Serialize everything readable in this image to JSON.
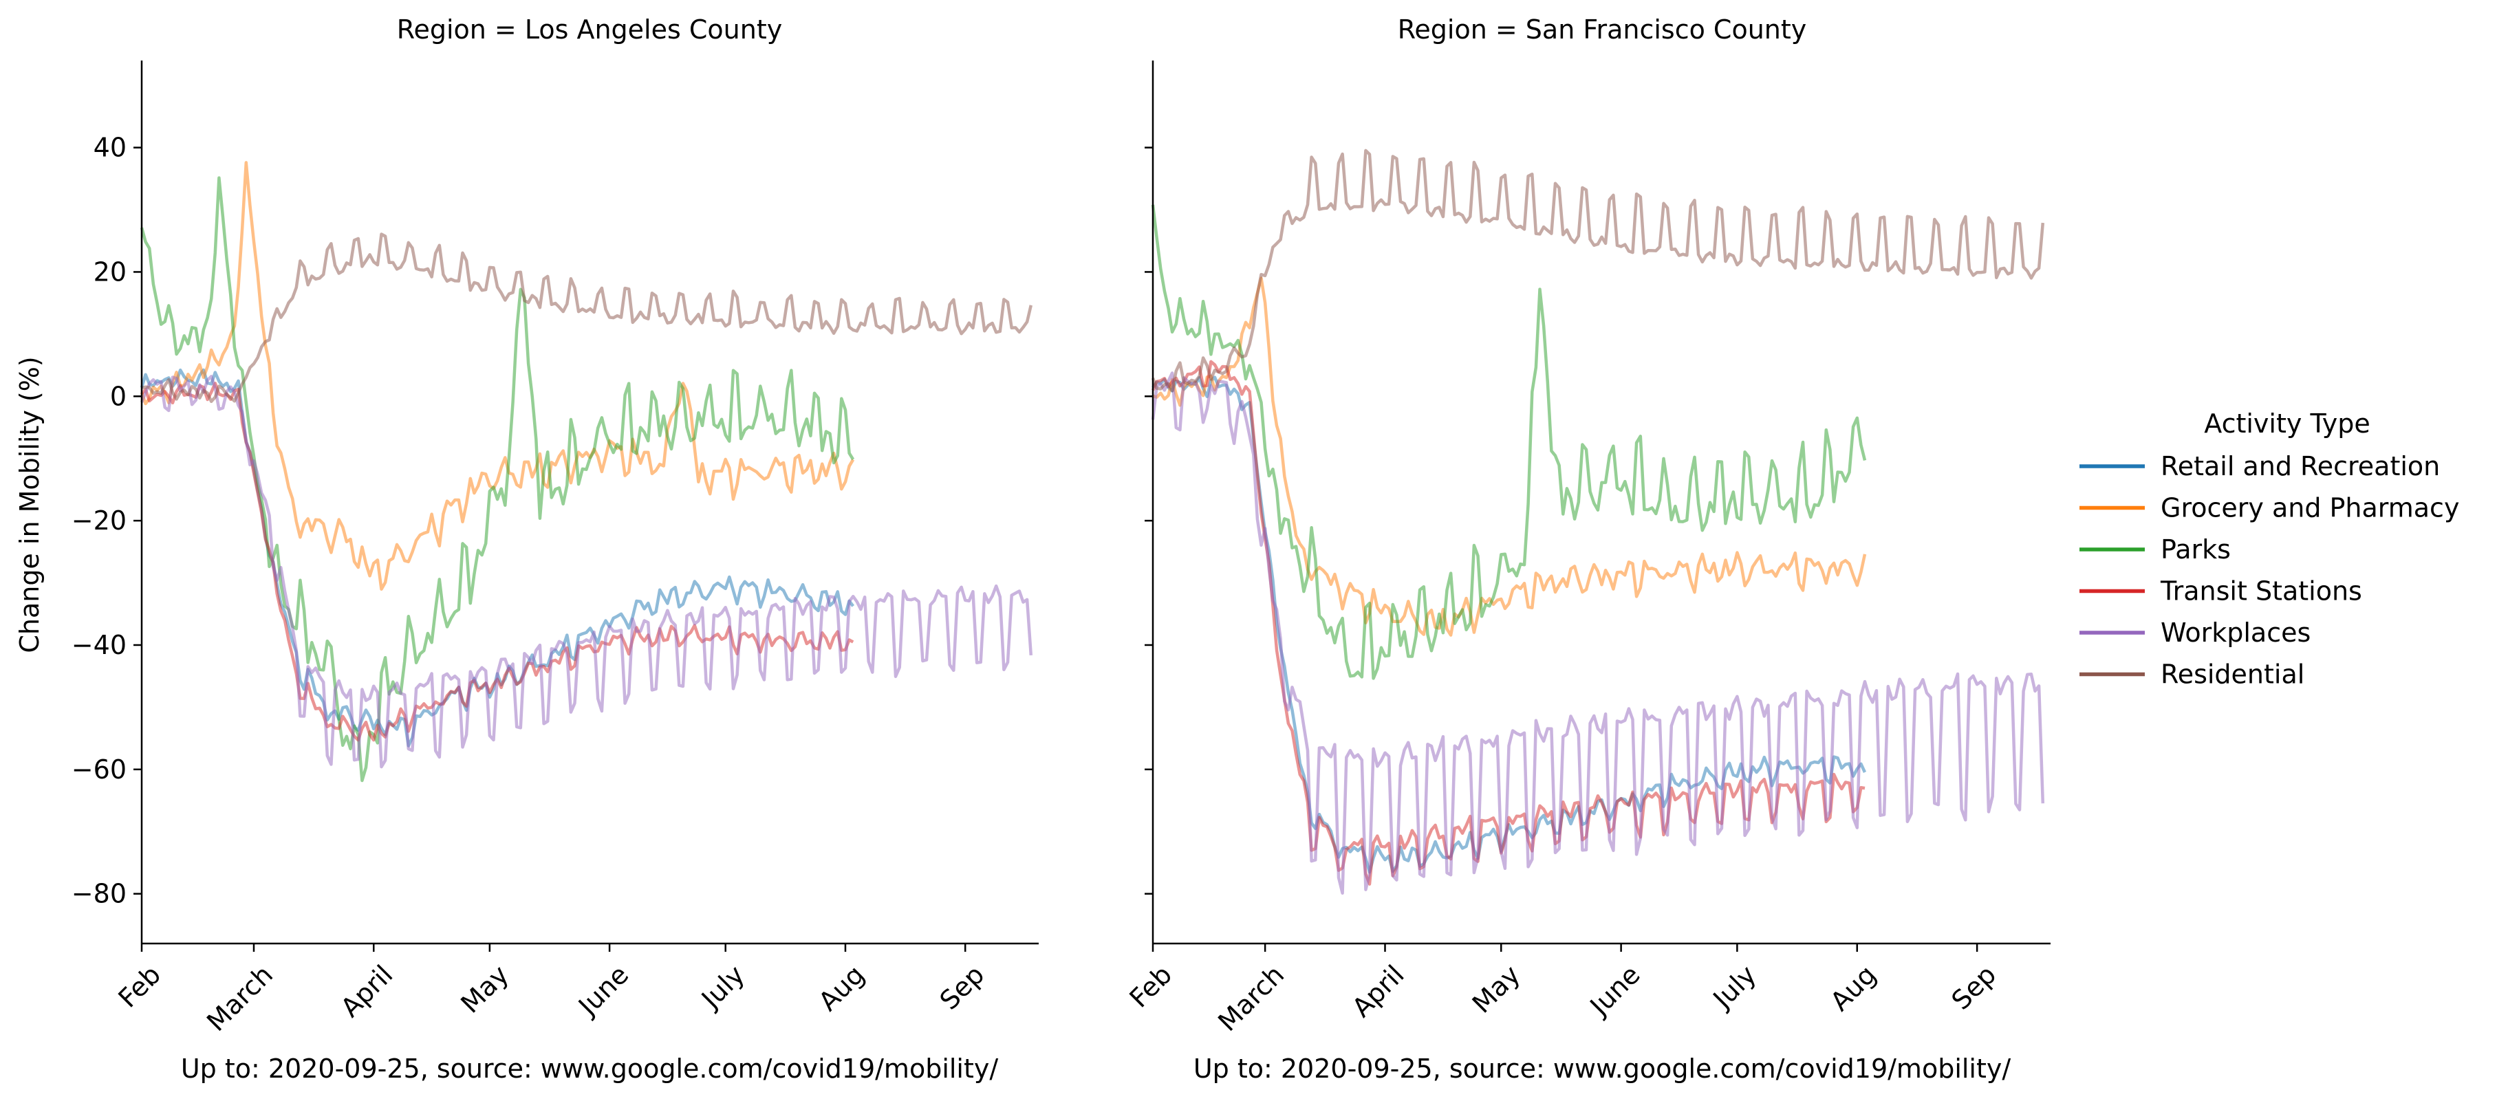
{
  "chart_data": [
    {
      "type": "line",
      "title": "Region = Los Angeles County",
      "ylabel": "Change in Mobility (%)",
      "xlabel": "Up to: 2020-09-25, source: www.google.com/covid19/mobility/",
      "x_range": [
        "2020-02-01",
        "2020-09-20"
      ],
      "ylim": [
        -88,
        54
      ],
      "x_ticks": [
        {
          "date": "2020-02-01",
          "label": "Feb"
        },
        {
          "date": "2020-03-01",
          "label": "March"
        },
        {
          "date": "2020-04-01",
          "label": "April"
        },
        {
          "date": "2020-05-01",
          "label": "May"
        },
        {
          "date": "2020-06-01",
          "label": "June"
        },
        {
          "date": "2020-07-01",
          "label": "July"
        },
        {
          "date": "2020-08-01",
          "label": "Aug"
        },
        {
          "date": "2020-09-01",
          "label": "Sep"
        }
      ],
      "y_ticks": [
        40,
        20,
        0,
        -20,
        -40,
        -60,
        -80
      ],
      "y_tick_labels": [
        "40",
        "20",
        "0",
        "−20",
        "−40",
        "−60",
        "−80"
      ],
      "grid": false,
      "series": [
        {
          "name": "Retail and Recreation",
          "color": "#1f77b4",
          "weekly_amplitude": 2,
          "noise": 1.5,
          "end": "2020-08-03",
          "points": [
            [
              "2020-02-01",
              2
            ],
            [
              "2020-02-10",
              3
            ],
            [
              "2020-02-20",
              3
            ],
            [
              "2020-02-26",
              1
            ],
            [
              "2020-03-05",
              -25
            ],
            [
              "2020-03-12",
              -42
            ],
            [
              "2020-03-20",
              -50
            ],
            [
              "2020-04-01",
              -52
            ],
            [
              "2020-04-10",
              -53
            ],
            [
              "2020-04-20",
              -48
            ],
            [
              "2020-05-01",
              -46
            ],
            [
              "2020-05-15",
              -42
            ],
            [
              "2020-06-01",
              -36
            ],
            [
              "2020-06-15",
              -32
            ],
            [
              "2020-07-01",
              -30
            ],
            [
              "2020-07-15",
              -31
            ],
            [
              "2020-08-03",
              -33
            ]
          ]
        },
        {
          "name": "Grocery and Pharmacy",
          "color": "#ff7f0e",
          "weekly_amplitude": 3,
          "noise": 2,
          "end": "2020-08-03",
          "points": [
            [
              "2020-02-01",
              0
            ],
            [
              "2020-02-10",
              2
            ],
            [
              "2020-02-20",
              6
            ],
            [
              "2020-02-25",
              10
            ],
            [
              "2020-02-28",
              37
            ],
            [
              "2020-03-04",
              8
            ],
            [
              "2020-03-08",
              -10
            ],
            [
              "2020-03-12",
              -19
            ],
            [
              "2020-03-25",
              -22
            ],
            [
              "2020-04-01",
              -28
            ],
            [
              "2020-04-10",
              -24
            ],
            [
              "2020-04-20",
              -18
            ],
            [
              "2020-05-01",
              -12
            ],
            [
              "2020-05-15",
              -11
            ],
            [
              "2020-06-01",
              -8
            ],
            [
              "2020-06-15",
              -10
            ],
            [
              "2020-06-20",
              5
            ],
            [
              "2020-06-24",
              -12
            ],
            [
              "2020-07-15",
              -11
            ],
            [
              "2020-08-03",
              -11
            ]
          ]
        },
        {
          "name": "Parks",
          "color": "#2ca02c",
          "weekly_amplitude": 7,
          "noise": 3,
          "end": "2020-08-03",
          "points": [
            [
              "2020-02-01",
              28
            ],
            [
              "2020-02-06",
              12
            ],
            [
              "2020-02-12",
              8
            ],
            [
              "2020-02-18",
              10
            ],
            [
              "2020-02-21",
              32
            ],
            [
              "2020-02-26",
              5
            ],
            [
              "2020-03-05",
              -25
            ],
            [
              "2020-03-12",
              -38
            ],
            [
              "2020-03-20",
              -45
            ],
            [
              "2020-03-28",
              -62
            ],
            [
              "2020-04-05",
              -48
            ],
            [
              "2020-04-15",
              -40
            ],
            [
              "2020-04-25",
              -32
            ],
            [
              "2020-05-05",
              -15
            ],
            [
              "2020-05-10",
              16
            ],
            [
              "2020-05-14",
              -18
            ],
            [
              "2020-05-25",
              -12
            ],
            [
              "2020-06-01",
              -8
            ],
            [
              "2020-06-15",
              -6
            ],
            [
              "2020-07-01",
              -5
            ],
            [
              "2020-07-20",
              -5
            ],
            [
              "2020-08-03",
              -10
            ]
          ]
        },
        {
          "name": "Transit Stations",
          "color": "#d62728",
          "weekly_amplitude": 1.5,
          "noise": 1.5,
          "end": "2020-08-03",
          "points": [
            [
              "2020-02-01",
              0
            ],
            [
              "2020-02-20",
              1
            ],
            [
              "2020-02-26",
              0
            ],
            [
              "2020-03-05",
              -25
            ],
            [
              "2020-03-12",
              -45
            ],
            [
              "2020-03-20",
              -52
            ],
            [
              "2020-04-01",
              -54
            ],
            [
              "2020-04-10",
              -51
            ],
            [
              "2020-04-20",
              -48
            ],
            [
              "2020-05-01",
              -46
            ],
            [
              "2020-05-15",
              -43
            ],
            [
              "2020-06-01",
              -39
            ],
            [
              "2020-06-20",
              -38
            ],
            [
              "2020-07-15",
              -39
            ],
            [
              "2020-08-03",
              -39
            ]
          ]
        },
        {
          "name": "Workplaces",
          "color": "#9467bd",
          "weekly_amplitude": 11,
          "noise": 1.5,
          "end": "2020-09-18",
          "points": [
            [
              "2020-02-01",
              2
            ],
            [
              "2020-02-20",
              2
            ],
            [
              "2020-02-26",
              0
            ],
            [
              "2020-03-05",
              -20
            ],
            [
              "2020-03-12",
              -40
            ],
            [
              "2020-03-20",
              -47
            ],
            [
              "2020-04-01",
              -48
            ],
            [
              "2020-04-15",
              -46
            ],
            [
              "2020-05-01",
              -44
            ],
            [
              "2020-05-15",
              -41
            ],
            [
              "2020-06-01",
              -38
            ],
            [
              "2020-06-15",
              -36
            ],
            [
              "2020-07-01",
              -35
            ],
            [
              "2020-08-01",
              -33
            ],
            [
              "2020-09-01",
              -32
            ],
            [
              "2020-09-18",
              -32
            ]
          ]
        },
        {
          "name": "Residential",
          "color": "#8c564b",
          "weekly_amplitude": 4,
          "noise": 1,
          "end": "2020-09-18",
          "points": [
            [
              "2020-02-01",
              1
            ],
            [
              "2020-02-20",
              0
            ],
            [
              "2020-02-26",
              0
            ],
            [
              "2020-03-05",
              10
            ],
            [
              "2020-03-12",
              17
            ],
            [
              "2020-03-20",
              20
            ],
            [
              "2020-04-01",
              22
            ],
            [
              "2020-04-15",
              20
            ],
            [
              "2020-05-01",
              17
            ],
            [
              "2020-05-15",
              15
            ],
            [
              "2020-06-01",
              13
            ],
            [
              "2020-07-01",
              12
            ],
            [
              "2020-08-01",
              11
            ],
            [
              "2020-09-01",
              11
            ],
            [
              "2020-09-18",
              11
            ]
          ]
        }
      ]
    },
    {
      "type": "line",
      "title": "Region = San Francisco County",
      "xlabel": "Up to: 2020-09-25, source: www.google.com/covid19/mobility/",
      "x_range": [
        "2020-02-01",
        "2020-09-20"
      ],
      "ylim": [
        -88,
        54
      ],
      "x_ticks": [
        {
          "date": "2020-02-01",
          "label": "Feb"
        },
        {
          "date": "2020-03-01",
          "label": "March"
        },
        {
          "date": "2020-04-01",
          "label": "April"
        },
        {
          "date": "2020-05-01",
          "label": "May"
        },
        {
          "date": "2020-06-01",
          "label": "June"
        },
        {
          "date": "2020-07-01",
          "label": "July"
        },
        {
          "date": "2020-08-01",
          "label": "Aug"
        },
        {
          "date": "2020-09-01",
          "label": "Sep"
        }
      ],
      "y_ticks": [
        40,
        20,
        0,
        -20,
        -40,
        -60,
        -80
      ],
      "grid": false,
      "series": [
        {
          "name": "Retail and Recreation",
          "color": "#1f77b4",
          "weekly_amplitude": 2,
          "noise": 1.5,
          "end": "2020-08-03",
          "points": [
            [
              "2020-02-01",
              2
            ],
            [
              "2020-02-20",
              2
            ],
            [
              "2020-02-26",
              -2
            ],
            [
              "2020-03-05",
              -40
            ],
            [
              "2020-03-12",
              -65
            ],
            [
              "2020-03-20",
              -72
            ],
            [
              "2020-04-01",
              -74
            ],
            [
              "2020-04-15",
              -73
            ],
            [
              "2020-05-01",
              -70
            ],
            [
              "2020-05-15",
              -68
            ],
            [
              "2020-06-01",
              -65
            ],
            [
              "2020-06-15",
              -62
            ],
            [
              "2020-07-01",
              -60
            ],
            [
              "2020-07-15",
              -59
            ],
            [
              "2020-08-03",
              -59
            ]
          ]
        },
        {
          "name": "Grocery and Pharmacy",
          "color": "#ff7f0e",
          "weekly_amplitude": 2.5,
          "noise": 2,
          "end": "2020-08-03",
          "points": [
            [
              "2020-02-01",
              0
            ],
            [
              "2020-02-20",
              3
            ],
            [
              "2020-02-26",
              12
            ],
            [
              "2020-02-29",
              20
            ],
            [
              "2020-03-04",
              -5
            ],
            [
              "2020-03-10",
              -25
            ],
            [
              "2020-03-20",
              -30
            ],
            [
              "2020-04-01",
              -34
            ],
            [
              "2020-04-15",
              -36
            ],
            [
              "2020-05-01",
              -32
            ],
            [
              "2020-05-15",
              -29
            ],
            [
              "2020-06-01",
              -28
            ],
            [
              "2020-07-01",
              -27
            ],
            [
              "2020-07-15",
              -27
            ],
            [
              "2020-08-03",
              -27
            ]
          ]
        },
        {
          "name": "Parks",
          "color": "#2ca02c",
          "weekly_amplitude": 8,
          "noise": 3,
          "end": "2020-08-03",
          "points": [
            [
              "2020-02-01",
              30
            ],
            [
              "2020-02-05",
              12
            ],
            [
              "2020-02-15",
              10
            ],
            [
              "2020-02-26",
              5
            ],
            [
              "2020-03-05",
              -20
            ],
            [
              "2020-03-12",
              -30
            ],
            [
              "2020-03-22",
              -45
            ],
            [
              "2020-04-01",
              -42
            ],
            [
              "2020-04-15",
              -38
            ],
            [
              "2020-05-01",
              -32
            ],
            [
              "2020-05-08",
              -25
            ],
            [
              "2020-05-11",
              20
            ],
            [
              "2020-05-15",
              -18
            ],
            [
              "2020-06-01",
              -15
            ],
            [
              "2020-06-15",
              -20
            ],
            [
              "2020-07-01",
              -18
            ],
            [
              "2020-07-20",
              -18
            ],
            [
              "2020-08-03",
              -10
            ]
          ]
        },
        {
          "name": "Transit Stations",
          "color": "#d62728",
          "weekly_amplitude": 5,
          "noise": 1.5,
          "end": "2020-08-03",
          "points": [
            [
              "2020-02-01",
              2
            ],
            [
              "2020-02-20",
              5
            ],
            [
              "2020-02-26",
              0
            ],
            [
              "2020-03-05",
              -45
            ],
            [
              "2020-03-12",
              -66
            ],
            [
              "2020-03-20",
              -72
            ],
            [
              "2020-04-01",
              -72
            ],
            [
              "2020-04-15",
              -70
            ],
            [
              "2020-05-01",
              -68
            ],
            [
              "2020-06-01",
              -65
            ],
            [
              "2020-07-01",
              -63
            ],
            [
              "2020-08-03",
              -62
            ]
          ]
        },
        {
          "name": "Workplaces",
          "color": "#9467bd",
          "weekly_amplitude": 20,
          "noise": 2,
          "end": "2020-09-18",
          "points": [
            [
              "2020-02-01",
              2
            ],
            [
              "2020-02-20",
              2
            ],
            [
              "2020-02-26",
              -5
            ],
            [
              "2020-03-05",
              -40
            ],
            [
              "2020-03-12",
              -55
            ],
            [
              "2020-03-20",
              -58
            ],
            [
              "2020-04-01",
              -58
            ],
            [
              "2020-05-01",
              -55
            ],
            [
              "2020-06-01",
              -52
            ],
            [
              "2020-07-01",
              -50
            ],
            [
              "2020-08-01",
              -48
            ],
            [
              "2020-09-01",
              -46
            ],
            [
              "2020-09-18",
              -46
            ]
          ]
        },
        {
          "name": "Residential",
          "color": "#8c564b",
          "weekly_amplitude": 8,
          "noise": 1,
          "end": "2020-09-18",
          "points": [
            [
              "2020-02-01",
              1
            ],
            [
              "2020-02-20",
              4
            ],
            [
              "2020-02-26",
              8
            ],
            [
              "2020-03-01",
              20
            ],
            [
              "2020-03-05",
              26
            ],
            [
              "2020-03-12",
              30
            ],
            [
              "2020-04-01",
              31
            ],
            [
              "2020-05-01",
              28
            ],
            [
              "2020-06-01",
              24
            ],
            [
              "2020-07-01",
              22
            ],
            [
              "2020-08-01",
              21
            ],
            [
              "2020-09-01",
              20
            ],
            [
              "2020-09-18",
              20
            ]
          ]
        }
      ]
    }
  ],
  "legend": {
    "title": "Activity Type",
    "placement": "right",
    "items": [
      {
        "label": "Retail and Recreation",
        "color": "#1f77b4"
      },
      {
        "label": "Grocery and Pharmacy",
        "color": "#ff7f0e"
      },
      {
        "label": "Parks",
        "color": "#2ca02c"
      },
      {
        "label": "Transit Stations",
        "color": "#d62728"
      },
      {
        "label": "Workplaces",
        "color": "#9467bd"
      },
      {
        "label": "Residential",
        "color": "#8c564b"
      }
    ]
  }
}
